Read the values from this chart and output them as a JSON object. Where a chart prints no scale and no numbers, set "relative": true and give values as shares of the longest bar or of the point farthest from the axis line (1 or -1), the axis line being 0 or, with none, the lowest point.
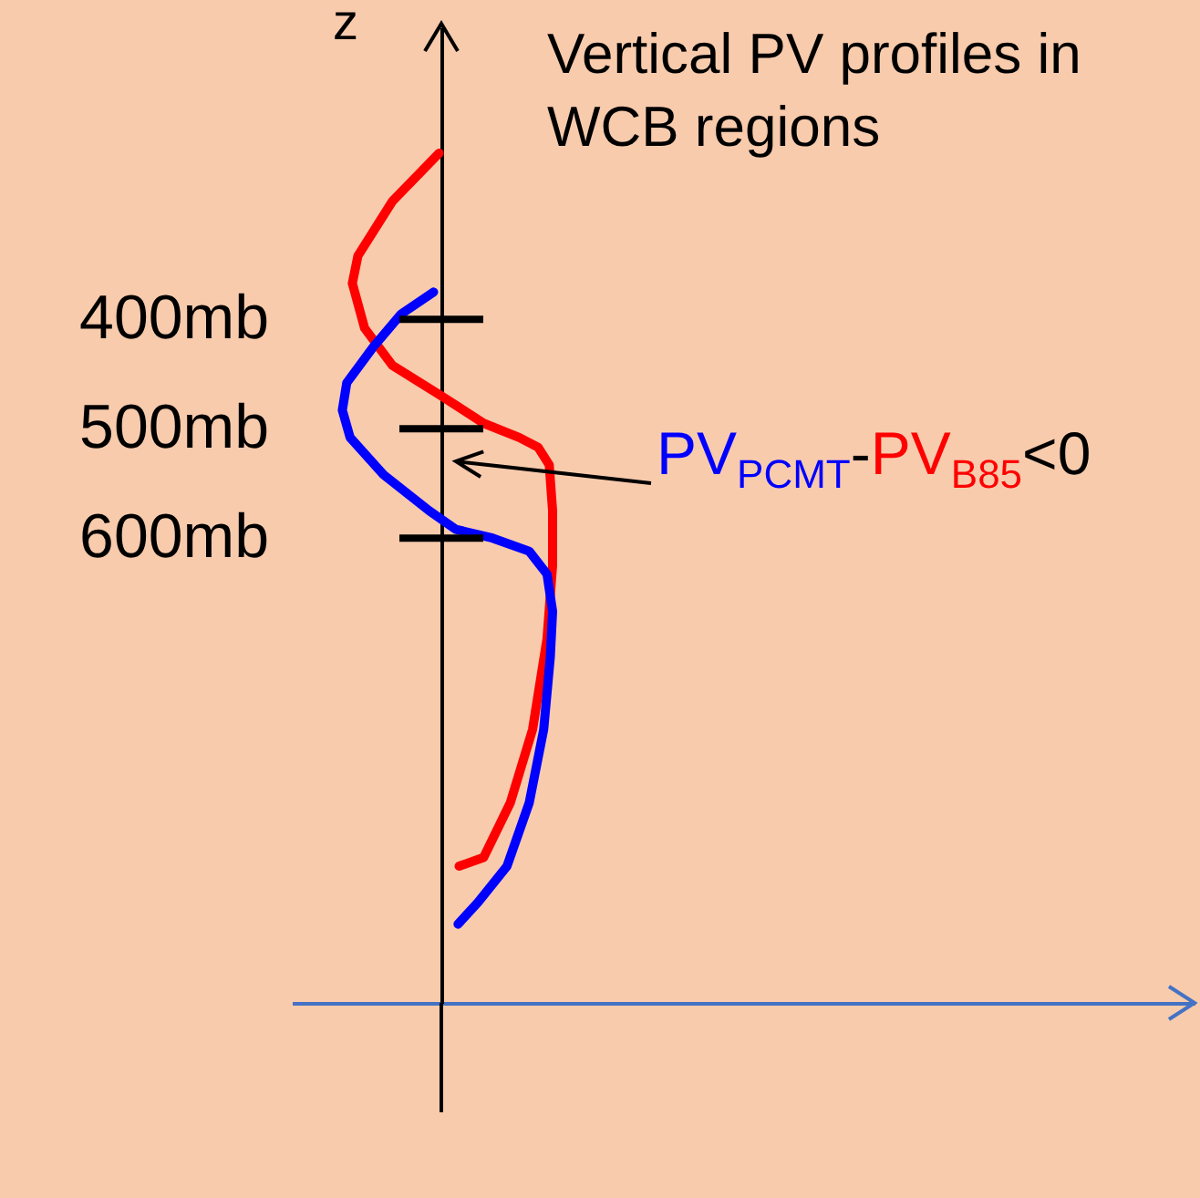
{
  "chart_data": {
    "type": "line",
    "title": "Vertical PV profiles in WCB regions",
    "ylabel": "z",
    "relative": true,
    "orientation": "horizontal",
    "ylim": [
      1025,
      133
    ],
    "yticks": [
      {
        "value": 400,
        "label": "400mb"
      },
      {
        "value": 500,
        "label": "500mb"
      },
      {
        "value": 600,
        "label": "600mb"
      }
    ],
    "annotations": [
      "PV$_{PCMT}$-PV$_{B85}$<0"
    ],
    "series": [
      {
        "color": "#ff0000",
        "x": [
          248,
          292,
          342,
          367,
          408,
          442,
          470,
          495,
          508,
          517,
          533,
          575,
          625,
          692,
          775,
          842,
          892,
          900
        ],
        "values": [
          -0.02,
          -0.44,
          -0.75,
          -0.8,
          -0.69,
          -0.44,
          0,
          0.38,
          0.7,
          0.87,
          0.97,
          1,
          1,
          0.95,
          0.82,
          0.62,
          0.38,
          0.16
        ]
      },
      {
        "color": "#0000ff",
        "x": [
          375,
          395,
          425,
          458,
          483,
          508,
          542,
          575,
          592,
          600,
          612,
          633,
          667,
          708,
          775,
          842,
          900,
          933,
          953
        ],
        "values": [
          -0.07,
          -0.36,
          -0.61,
          -0.85,
          -0.89,
          -0.82,
          -0.52,
          -0.11,
          0.13,
          0.46,
          0.79,
          0.95,
          1,
          0.98,
          0.92,
          0.79,
          0.59,
          0.33,
          0.15
        ]
      }
    ]
  }
}
